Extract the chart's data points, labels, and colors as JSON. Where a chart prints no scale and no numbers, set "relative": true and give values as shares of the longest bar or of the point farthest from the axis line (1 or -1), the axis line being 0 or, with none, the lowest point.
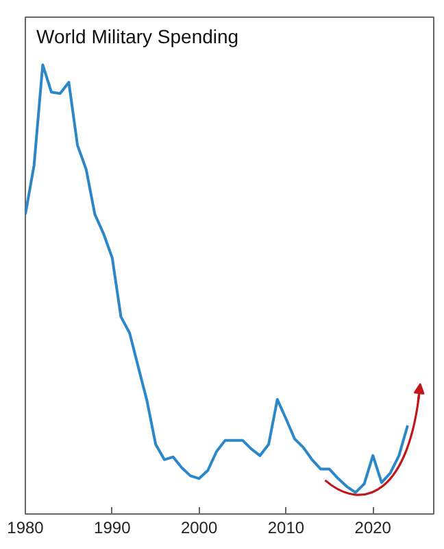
{
  "chart_data": {
    "type": "line",
    "title": "World Military Spending",
    "relative": true,
    "x": [
      1980,
      1981,
      1982,
      1983,
      1984,
      1985,
      1986,
      1987,
      1988,
      1989,
      1990,
      1991,
      1992,
      1993,
      1994,
      1995,
      1996,
      1997,
      1998,
      1999,
      2000,
      2001,
      2002,
      2003,
      2004,
      2005,
      2006,
      2007,
      2008,
      2009,
      2010,
      2011,
      2012,
      2013,
      2014,
      2015,
      2016,
      2017,
      2018,
      2019,
      2020,
      2021,
      2022,
      2023,
      2024
    ],
    "series": [
      {
        "color": "#2b87c8",
        "values": [
          0.667,
          0.776,
          1,
          0.939,
          0.936,
          0.961,
          0.821,
          0.767,
          0.667,
          0.624,
          0.57,
          0.439,
          0.403,
          0.327,
          0.252,
          0.155,
          0.121,
          0.127,
          0.103,
          0.085,
          0.079,
          0.097,
          0.139,
          0.164,
          0.164,
          0.164,
          0.145,
          0.13,
          0.155,
          0.255,
          0.212,
          0.167,
          0.148,
          0.121,
          0.1,
          0.1,
          0.079,
          0.061,
          0.048,
          0.067,
          0.13,
          0.07,
          0.091,
          0.13,
          0.197
        ]
      }
    ],
    "xlim": [
      1980,
      2027
    ],
    "xticks": [
      1980,
      1990,
      2000,
      2010,
      2020
    ],
    "grid": false,
    "tick_labels": "x"
  }
}
